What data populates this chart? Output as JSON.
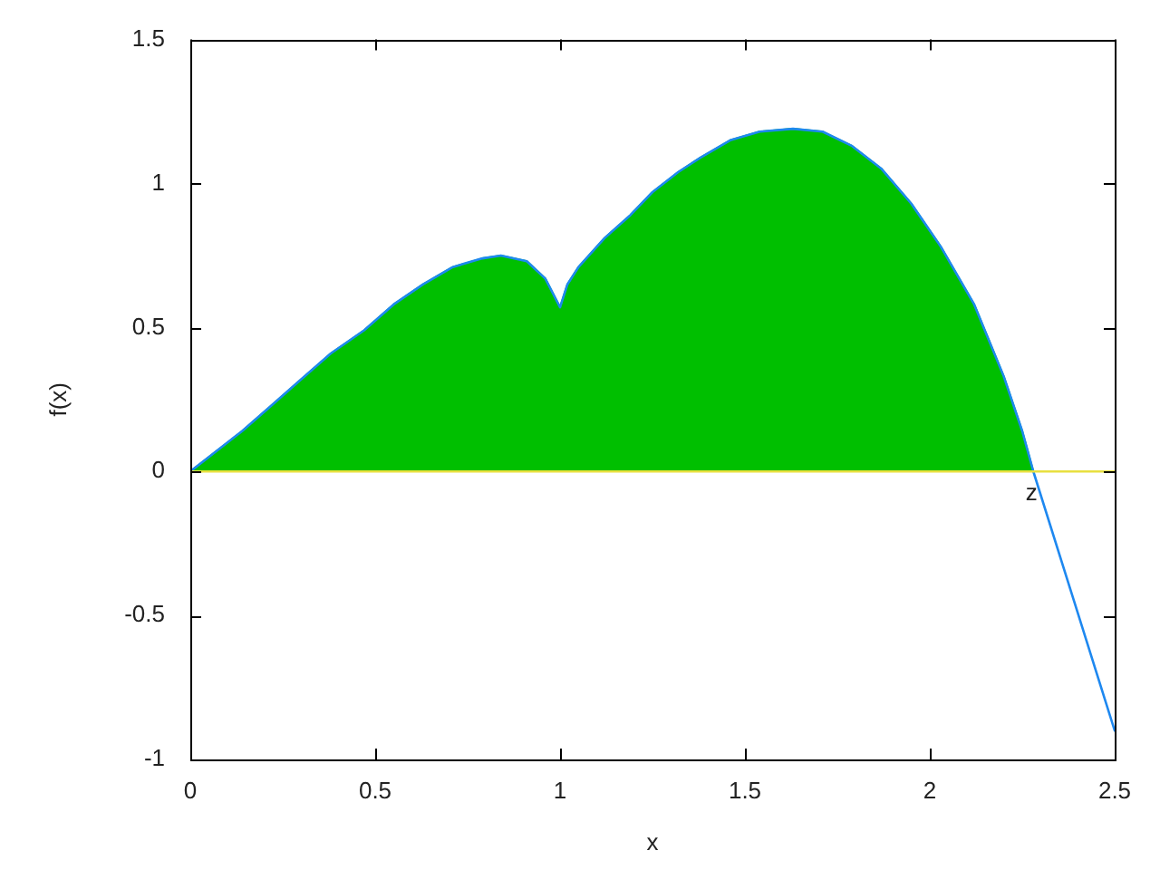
{
  "chart_data": {
    "type": "line",
    "xlabel": "x",
    "ylabel": "f(x)",
    "xlim": [
      0,
      2.5
    ],
    "ylim": [
      -1,
      1.5
    ],
    "xticks": [
      0,
      0.5,
      1,
      1.5,
      2,
      2.5
    ],
    "yticks": [
      -1,
      -0.5,
      0,
      0.5,
      1,
      1.5
    ],
    "marker": "none",
    "ref_lines": [
      {
        "axis": "y",
        "value": 0,
        "color": "#e8e040"
      }
    ],
    "annotations": [
      {
        "text": "z",
        "x": 2.28,
        "y": 0
      }
    ],
    "series": [
      {
        "type": "area",
        "color": "#00bf00",
        "x": [
          0,
          0.14,
          0.22,
          0.3,
          0.38,
          0.47,
          0.55,
          0.63,
          0.71,
          0.79,
          0.84,
          0.91,
          0.96,
          0.98,
          1.0,
          1.01,
          1.02,
          1.05,
          1.12,
          1.19,
          1.25,
          1.32,
          1.38,
          1.46,
          1.54,
          1.63,
          1.71,
          1.79,
          1.87,
          1.95,
          2.03,
          2.12,
          2.2,
          2.25,
          2.28
        ],
        "values": [
          0,
          0.14,
          0.23,
          0.32,
          0.41,
          0.49,
          0.58,
          0.65,
          0.71,
          0.74,
          0.75,
          0.73,
          0.67,
          0.62,
          0.57,
          0.61,
          0.65,
          0.71,
          0.81,
          0.89,
          0.97,
          1.04,
          1.09,
          1.15,
          1.18,
          1.19,
          1.18,
          1.13,
          1.05,
          0.93,
          0.78,
          0.58,
          0.33,
          0.14,
          0
        ]
      },
      {
        "type": "line",
        "color": "#1e88f0",
        "x": [
          0,
          0.14,
          0.22,
          0.3,
          0.38,
          0.47,
          0.55,
          0.63,
          0.71,
          0.79,
          0.84,
          0.91,
          0.96,
          0.98,
          1.0,
          1.01,
          1.02,
          1.05,
          1.12,
          1.19,
          1.25,
          1.32,
          1.38,
          1.46,
          1.54,
          1.63,
          1.71,
          1.79,
          1.87,
          1.95,
          2.03,
          2.12,
          2.2,
          2.25,
          2.28,
          2.39,
          2.5
        ],
        "values": [
          0,
          0.14,
          0.23,
          0.32,
          0.41,
          0.49,
          0.58,
          0.65,
          0.71,
          0.74,
          0.75,
          0.73,
          0.67,
          0.62,
          0.57,
          0.61,
          0.65,
          0.71,
          0.81,
          0.89,
          0.97,
          1.04,
          1.09,
          1.15,
          1.18,
          1.19,
          1.18,
          1.13,
          1.05,
          0.93,
          0.78,
          0.58,
          0.33,
          0.14,
          0,
          -0.45,
          -0.9
        ]
      }
    ]
  }
}
